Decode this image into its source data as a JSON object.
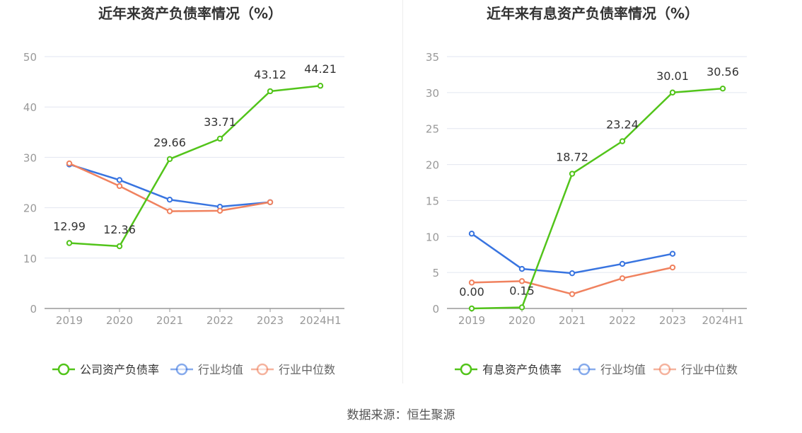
{
  "source_label": "数据来源：恒生聚源",
  "colors": {
    "company": "#52c41a",
    "avg": "#3874e0",
    "median": "#f0825f",
    "grid": "#e2e6f0",
    "axis": "#999999",
    "text": "#999999",
    "label": "#333333",
    "title": "#333333"
  },
  "chart_data": [
    {
      "type": "line",
      "title": "近年来资产负债率情况（%）",
      "categories": [
        "2019",
        "2020",
        "2021",
        "2022",
        "2023",
        "2024H1"
      ],
      "ylim": [
        0,
        50
      ],
      "yticks": [
        0,
        10,
        20,
        30,
        40,
        50
      ],
      "series": [
        {
          "name": "公司资产负债率",
          "key": "company",
          "values": [
            12.99,
            12.36,
            29.66,
            33.71,
            43.12,
            44.21
          ],
          "labels": [
            "12.99",
            "12.36",
            "29.66",
            "33.71",
            "43.12",
            "44.21"
          ]
        },
        {
          "name": "行业均值",
          "key": "avg",
          "values": [
            28.6,
            25.5,
            21.6,
            20.2,
            21.1,
            null
          ]
        },
        {
          "name": "行业中位数",
          "key": "median",
          "values": [
            28.8,
            24.3,
            19.3,
            19.4,
            21.1,
            null
          ]
        }
      ],
      "legend_position": "bottom"
    },
    {
      "type": "line",
      "title": "近年来有息资产负债率情况（%）",
      "categories": [
        "2019",
        "2020",
        "2021",
        "2022",
        "2023",
        "2024H1"
      ],
      "ylim": [
        0,
        35
      ],
      "yticks": [
        0,
        5,
        10,
        15,
        20,
        25,
        30,
        35
      ],
      "series": [
        {
          "name": "有息资产负债率",
          "key": "company",
          "values": [
            0.0,
            0.15,
            18.72,
            23.24,
            30.01,
            30.56
          ],
          "labels": [
            "0.00",
            "0.15",
            "18.72",
            "23.24",
            "30.01",
            "30.56"
          ]
        },
        {
          "name": "行业均值",
          "key": "avg",
          "values": [
            10.4,
            5.5,
            4.9,
            6.2,
            7.6,
            null
          ]
        },
        {
          "name": "行业中位数",
          "key": "median",
          "values": [
            3.6,
            3.8,
            2.0,
            4.2,
            5.7,
            null
          ]
        }
      ],
      "legend_position": "bottom"
    }
  ]
}
